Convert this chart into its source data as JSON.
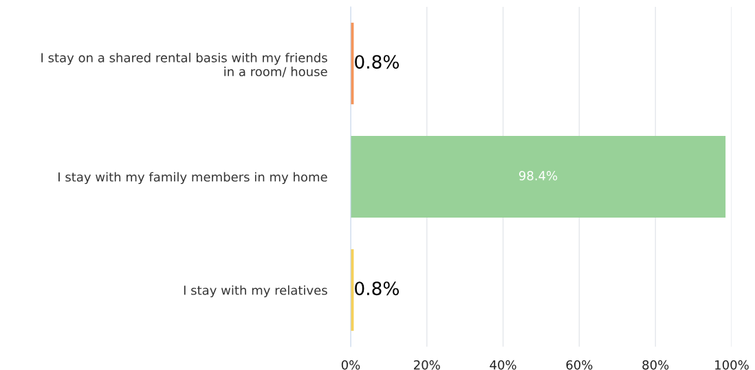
{
  "chart_data": {
    "type": "bar",
    "orientation": "horizontal",
    "categories": [
      "I stay on a shared rental basis with my friends\nin a room/ house",
      "I stay with my family members in my home",
      "I stay with my relatives"
    ],
    "values": [
      0.8,
      98.4,
      0.8
    ],
    "colors": [
      "#f4955a",
      "#98d198",
      "#f5d05a"
    ],
    "value_labels": [
      "0.8%",
      "98.4%",
      "0.8%"
    ],
    "xlim": [
      0,
      100
    ],
    "xticks": [
      {
        "value": 0,
        "label": "0%"
      },
      {
        "value": 20,
        "label": "20%"
      },
      {
        "value": 40,
        "label": "40%"
      },
      {
        "value": 60,
        "label": "60%"
      },
      {
        "value": 80,
        "label": "80%"
      },
      {
        "value": 100,
        "label": "100%"
      }
    ],
    "grid": "x",
    "legend": false
  }
}
